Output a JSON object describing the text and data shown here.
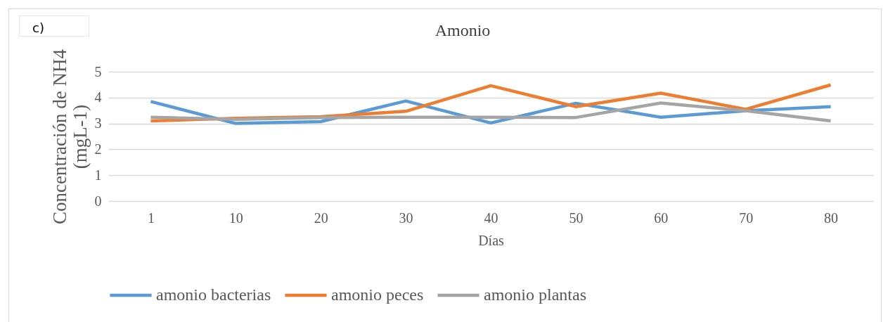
{
  "chart_data": {
    "type": "line",
    "title": "Amonio",
    "xlabel": "Días",
    "ylabel": "Concentración de NH4 (mgL-1)",
    "annotations": [
      "c)"
    ],
    "categories": [
      "1",
      "10",
      "20",
      "30",
      "40",
      "50",
      "60",
      "70",
      "80"
    ],
    "series": [
      {
        "name": "amonio bacterias",
        "color": "#5b9bd5",
        "values": [
          3.85,
          3.0,
          3.07,
          3.87,
          3.02,
          3.78,
          3.24,
          3.49,
          3.65
        ]
      },
      {
        "name": "amonio peces",
        "color": "#ed7d31",
        "values": [
          3.1,
          3.2,
          3.26,
          3.47,
          4.46,
          3.65,
          4.17,
          3.55,
          4.49
        ]
      },
      {
        "name": "amonio plantas",
        "color": "#a5a5a5",
        "values": [
          3.24,
          3.16,
          3.23,
          3.24,
          3.24,
          3.23,
          3.79,
          3.49,
          3.1
        ]
      }
    ],
    "ylim": [
      0,
      5
    ],
    "yticks": [
      0,
      1,
      2,
      3,
      4,
      5
    ],
    "grid": "y",
    "legend": "bottom",
    "marker": "none",
    "line_style": "solid"
  }
}
